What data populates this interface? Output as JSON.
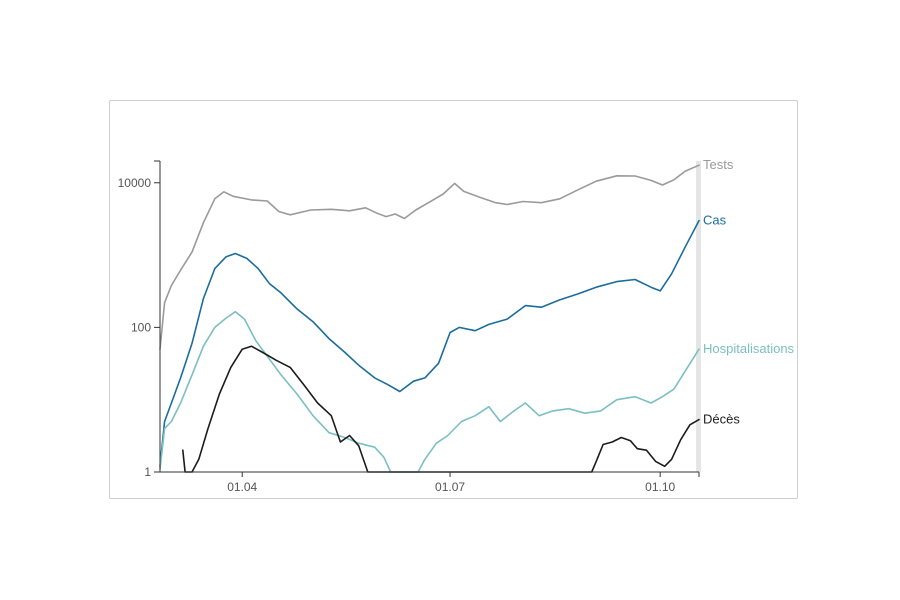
{
  "chart_data": {
    "type": "line",
    "y_scale": "log",
    "ylim": [
      1,
      20000
    ],
    "y_ticks": [
      {
        "value": 1,
        "label": "1"
      },
      {
        "value": 100,
        "label": "100"
      },
      {
        "value": 10000,
        "label": "10000"
      }
    ],
    "x_ticks": [
      {
        "value": "2020-04-01",
        "label": "01.04"
      },
      {
        "value": "2020-07-01",
        "label": "01.07"
      },
      {
        "value": "2020-10-01",
        "label": "01.10"
      }
    ],
    "xlim": [
      "2020-02-25",
      "2020-10-18"
    ],
    "marker_date": "2020-10-18",
    "grid": false,
    "legend": "inline-right",
    "series": [
      {
        "name": "Tests",
        "color": "#9a9a9a",
        "points": [
          [
            "2020-02-25",
            50
          ],
          [
            "2020-02-27",
            220
          ],
          [
            "2020-03-01",
            380
          ],
          [
            "2020-03-05",
            620
          ],
          [
            "2020-03-10",
            1100
          ],
          [
            "2020-03-15",
            2800
          ],
          [
            "2020-03-20",
            6000
          ],
          [
            "2020-03-24",
            7500
          ],
          [
            "2020-03-28",
            6500
          ],
          [
            "2020-04-05",
            5800
          ],
          [
            "2020-04-12",
            5600
          ],
          [
            "2020-04-17",
            4000
          ],
          [
            "2020-04-22",
            3600
          ],
          [
            "2020-05-01",
            4200
          ],
          [
            "2020-05-10",
            4300
          ],
          [
            "2020-05-18",
            4100
          ],
          [
            "2020-05-25",
            4500
          ],
          [
            "2020-05-30",
            3800
          ],
          [
            "2020-06-03",
            3400
          ],
          [
            "2020-06-07",
            3700
          ],
          [
            "2020-06-11",
            3200
          ],
          [
            "2020-06-16",
            4200
          ],
          [
            "2020-06-22",
            5400
          ],
          [
            "2020-06-28",
            7000
          ],
          [
            "2020-07-03",
            9800
          ],
          [
            "2020-07-07",
            7600
          ],
          [
            "2020-07-14",
            6300
          ],
          [
            "2020-07-21",
            5300
          ],
          [
            "2020-07-26",
            5000
          ],
          [
            "2020-08-02",
            5500
          ],
          [
            "2020-08-10",
            5300
          ],
          [
            "2020-08-18",
            6000
          ],
          [
            "2020-08-26",
            8000
          ],
          [
            "2020-09-03",
            10500
          ],
          [
            "2020-09-12",
            12500
          ],
          [
            "2020-09-20",
            12400
          ],
          [
            "2020-09-27",
            10800
          ],
          [
            "2020-10-02",
            9300
          ],
          [
            "2020-10-07",
            11000
          ],
          [
            "2020-10-12",
            14500
          ],
          [
            "2020-10-18",
            17500
          ]
        ]
      },
      {
        "name": "Cas",
        "color": "#1a6d9c",
        "points": [
          [
            "2020-02-25",
            1.2
          ],
          [
            "2020-02-27",
            5
          ],
          [
            "2020-03-01",
            9
          ],
          [
            "2020-03-05",
            20
          ],
          [
            "2020-03-10",
            60
          ],
          [
            "2020-03-15",
            250
          ],
          [
            "2020-03-20",
            650
          ],
          [
            "2020-03-25",
            950
          ],
          [
            "2020-03-29",
            1050
          ],
          [
            "2020-04-03",
            900
          ],
          [
            "2020-04-08",
            650
          ],
          [
            "2020-04-13",
            400
          ],
          [
            "2020-04-18",
            300
          ],
          [
            "2020-04-25",
            180
          ],
          [
            "2020-05-02",
            120
          ],
          [
            "2020-05-09",
            70
          ],
          [
            "2020-05-16",
            45
          ],
          [
            "2020-05-22",
            30
          ],
          [
            "2020-05-29",
            20
          ],
          [
            "2020-06-04",
            16
          ],
          [
            "2020-06-09",
            13
          ],
          [
            "2020-06-15",
            18
          ],
          [
            "2020-06-20",
            20
          ],
          [
            "2020-06-26",
            32
          ],
          [
            "2020-07-01",
            85
          ],
          [
            "2020-07-05",
            100
          ],
          [
            "2020-07-12",
            90
          ],
          [
            "2020-07-18",
            110
          ],
          [
            "2020-07-26",
            130
          ],
          [
            "2020-08-03",
            200
          ],
          [
            "2020-08-10",
            190
          ],
          [
            "2020-08-18",
            240
          ],
          [
            "2020-08-26",
            290
          ],
          [
            "2020-09-03",
            360
          ],
          [
            "2020-09-12",
            430
          ],
          [
            "2020-09-20",
            460
          ],
          [
            "2020-09-27",
            360
          ],
          [
            "2020-10-01",
            320
          ],
          [
            "2020-10-06",
            550
          ],
          [
            "2020-10-12",
            1300
          ],
          [
            "2020-10-18",
            3000
          ]
        ]
      },
      {
        "name": "Hospitalisations",
        "color": "#7bbfc2",
        "points": [
          [
            "2020-02-25",
            1.1
          ],
          [
            "2020-02-27",
            4
          ],
          [
            "2020-03-01",
            5
          ],
          [
            "2020-03-05",
            9
          ],
          [
            "2020-03-10",
            22
          ],
          [
            "2020-03-15",
            55
          ],
          [
            "2020-03-20",
            100
          ],
          [
            "2020-03-25",
            135
          ],
          [
            "2020-03-29",
            165
          ],
          [
            "2020-04-02",
            130
          ],
          [
            "2020-04-07",
            65
          ],
          [
            "2020-04-12",
            40
          ],
          [
            "2020-04-18",
            22
          ],
          [
            "2020-04-25",
            12
          ],
          [
            "2020-05-02",
            6
          ],
          [
            "2020-05-09",
            3.5
          ],
          [
            "2020-05-16",
            3
          ],
          [
            "2020-05-22",
            2.5
          ],
          [
            "2020-05-29",
            2.2
          ],
          [
            "2020-06-02",
            1.6
          ],
          [
            "2020-06-05",
            1.0
          ],
          [
            "2020-06-12",
            1.0
          ],
          [
            "2020-06-17",
            1.0
          ],
          [
            "2020-06-20",
            1.5
          ],
          [
            "2020-06-25",
            2.5
          ],
          [
            "2020-06-30",
            3.2
          ],
          [
            "2020-07-06",
            5
          ],
          [
            "2020-07-12",
            6
          ],
          [
            "2020-07-18",
            8
          ],
          [
            "2020-07-23",
            5
          ],
          [
            "2020-07-29",
            7
          ],
          [
            "2020-08-03",
            9
          ],
          [
            "2020-08-09",
            6
          ],
          [
            "2020-08-15",
            7
          ],
          [
            "2020-08-22",
            7.5
          ],
          [
            "2020-08-29",
            6.5
          ],
          [
            "2020-09-05",
            7
          ],
          [
            "2020-09-12",
            10
          ],
          [
            "2020-09-20",
            11
          ],
          [
            "2020-09-27",
            9
          ],
          [
            "2020-10-02",
            11
          ],
          [
            "2020-10-07",
            14
          ],
          [
            "2020-10-12",
            25
          ],
          [
            "2020-10-18",
            50
          ]
        ]
      },
      {
        "name": "Décès",
        "color": "#1c1c1c",
        "points": [
          [
            "2020-03-06",
            2.0
          ],
          [
            "2020-03-07",
            1.0
          ],
          [
            "2020-03-10",
            1.0
          ],
          [
            "2020-03-13",
            1.5
          ],
          [
            "2020-03-17",
            4
          ],
          [
            "2020-03-22",
            12
          ],
          [
            "2020-03-27",
            28
          ],
          [
            "2020-04-01",
            50
          ],
          [
            "2020-04-05",
            55
          ],
          [
            "2020-04-10",
            45
          ],
          [
            "2020-04-16",
            35
          ],
          [
            "2020-04-22",
            28
          ],
          [
            "2020-04-28",
            16
          ],
          [
            "2020-05-04",
            9
          ],
          [
            "2020-05-10",
            6
          ],
          [
            "2020-05-14",
            2.6
          ],
          [
            "2020-05-18",
            3.2
          ],
          [
            "2020-05-22",
            2.3
          ],
          [
            "2020-05-26",
            1.0
          ],
          [
            "2020-06-05",
            1.0
          ],
          [
            "2020-07-01",
            1.0
          ],
          [
            "2020-08-01",
            1.0
          ],
          [
            "2020-09-01",
            1.0
          ],
          [
            "2020-09-03",
            1.4
          ],
          [
            "2020-09-06",
            2.4
          ],
          [
            "2020-09-10",
            2.6
          ],
          [
            "2020-09-14",
            3.0
          ],
          [
            "2020-09-18",
            2.7
          ],
          [
            "2020-09-21",
            2.1
          ],
          [
            "2020-09-25",
            2.0
          ],
          [
            "2020-09-29",
            1.4
          ],
          [
            "2020-10-03",
            1.2
          ],
          [
            "2020-10-06",
            1.5
          ],
          [
            "2020-10-10",
            2.8
          ],
          [
            "2020-10-14",
            4.5
          ],
          [
            "2020-10-18",
            5.3
          ]
        ]
      }
    ]
  }
}
